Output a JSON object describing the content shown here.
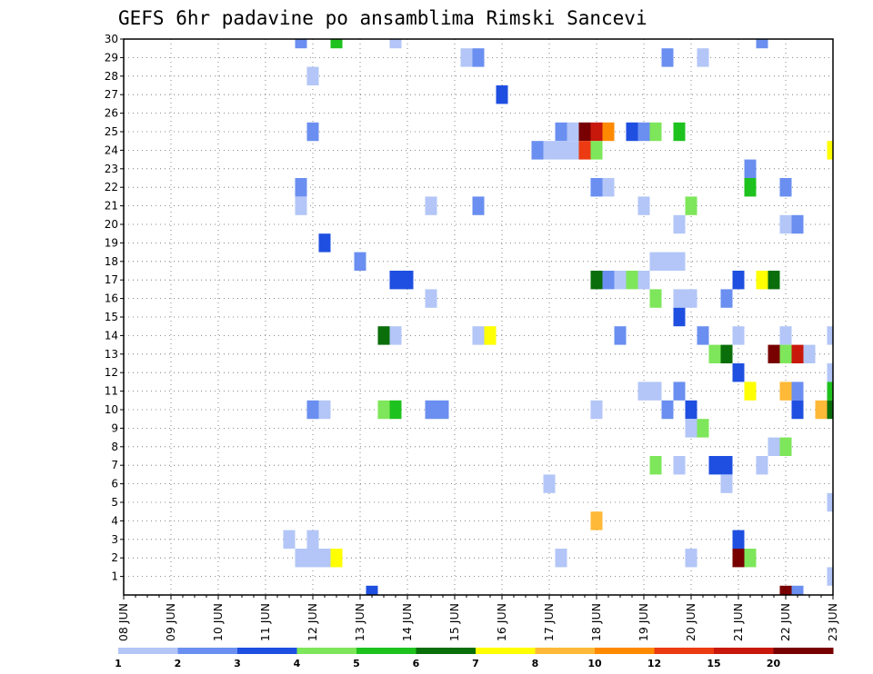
{
  "chart_data": {
    "type": "heatmap",
    "title": "GEFS 6hr padavine po ansamblima Rimski Sancevi",
    "xlabel": "",
    "ylabel": "",
    "x_tick_labels": [
      "08 JUN",
      "09 JUN",
      "10 JUN",
      "11 JUN",
      "12 JUN",
      "13 JUN",
      "14 JUN",
      "15 JUN",
      "16 JUN",
      "17 JUN",
      "18 JUN",
      "19 JUN",
      "20 JUN",
      "21 JUN",
      "22 JUN",
      "23 JUN"
    ],
    "y_tick_labels": [
      "1",
      "2",
      "3",
      "4",
      "5",
      "6",
      "7",
      "8",
      "9",
      "10",
      "11",
      "12",
      "13",
      "14",
      "15",
      "16",
      "17",
      "18",
      "19",
      "20",
      "21",
      "22",
      "23",
      "24",
      "25",
      "26",
      "27",
      "28",
      "29",
      "30"
    ],
    "x_range_days": [
      0,
      15
    ],
    "y_range": [
      0,
      30
    ],
    "time_step_hours": 6,
    "grid": "dotted",
    "legend_position": "bottom",
    "legend_levels": [
      "1",
      "2",
      "3",
      "4",
      "5",
      "6",
      "7",
      "8",
      "10",
      "12",
      "15",
      "20"
    ],
    "color_bins": [
      {
        "min": 1,
        "max": 2,
        "color": "#b3c6f7"
      },
      {
        "min": 2,
        "max": 3,
        "color": "#6a8ff0"
      },
      {
        "min": 3,
        "max": 4,
        "color": "#1e4fe0"
      },
      {
        "min": 4,
        "max": 5,
        "color": "#7ee65a"
      },
      {
        "min": 5,
        "max": 6,
        "color": "#1ec21e"
      },
      {
        "min": 6,
        "max": 7,
        "color": "#0a6e0a"
      },
      {
        "min": 7,
        "max": 8,
        "color": "#ffff00"
      },
      {
        "min": 8,
        "max": 10,
        "color": "#ffb938"
      },
      {
        "min": 10,
        "max": 12,
        "color": "#ff8a00"
      },
      {
        "min": 12,
        "max": 15,
        "color": "#ec3a12"
      },
      {
        "min": 15,
        "max": 20,
        "color": "#c8180c"
      },
      {
        "min": 20,
        "max": 30,
        "color": "#780000"
      }
    ],
    "cells": [
      {
        "day": 3.75,
        "member": 30,
        "bin": 1
      },
      {
        "day": 4.5,
        "member": 30,
        "bin": 4
      },
      {
        "day": 5.75,
        "member": 30,
        "bin": 0
      },
      {
        "day": 13.5,
        "member": 30,
        "bin": 1
      },
      {
        "day": 7.25,
        "member": 29,
        "bin": 0
      },
      {
        "day": 7.5,
        "member": 29,
        "bin": 1
      },
      {
        "day": 11.5,
        "member": 29,
        "bin": 1
      },
      {
        "day": 12.25,
        "member": 29,
        "bin": 0
      },
      {
        "day": 4,
        "member": 28,
        "bin": 0
      },
      {
        "day": 8,
        "member": 27,
        "bin": 2
      },
      {
        "day": 4,
        "member": 25,
        "bin": 1
      },
      {
        "day": 9.25,
        "member": 25,
        "bin": 1
      },
      {
        "day": 9.5,
        "member": 25,
        "bin": 0
      },
      {
        "day": 9.75,
        "member": 25,
        "bin": 11
      },
      {
        "day": 10,
        "member": 25,
        "bin": 10
      },
      {
        "day": 10.25,
        "member": 25,
        "bin": 8
      },
      {
        "day": 10.75,
        "member": 25,
        "bin": 2
      },
      {
        "day": 11,
        "member": 25,
        "bin": 1
      },
      {
        "day": 11.25,
        "member": 25,
        "bin": 3
      },
      {
        "day": 11.75,
        "member": 25,
        "bin": 4
      },
      {
        "day": 8.75,
        "member": 24,
        "bin": 1
      },
      {
        "day": 9,
        "member": 24,
        "bin": 0
      },
      {
        "day": 9.25,
        "member": 24,
        "bin": 0
      },
      {
        "day": 9.5,
        "member": 24,
        "bin": 0
      },
      {
        "day": 9.75,
        "member": 24,
        "bin": 9
      },
      {
        "day": 10,
        "member": 24,
        "bin": 3
      },
      {
        "day": 15,
        "member": 24,
        "bin": 6
      },
      {
        "day": 13.25,
        "member": 23,
        "bin": 1
      },
      {
        "day": 3.75,
        "member": 22,
        "bin": 1
      },
      {
        "day": 10,
        "member": 22,
        "bin": 1
      },
      {
        "day": 10.25,
        "member": 22,
        "bin": 0
      },
      {
        "day": 13.25,
        "member": 22,
        "bin": 4
      },
      {
        "day": 14,
        "member": 22,
        "bin": 1
      },
      {
        "day": 3.75,
        "member": 21,
        "bin": 0
      },
      {
        "day": 6.5,
        "member": 21,
        "bin": 0
      },
      {
        "day": 7.5,
        "member": 21,
        "bin": 1
      },
      {
        "day": 11,
        "member": 21,
        "bin": 0
      },
      {
        "day": 12,
        "member": 21,
        "bin": 3
      },
      {
        "day": 11.75,
        "member": 20,
        "bin": 0
      },
      {
        "day": 14,
        "member": 20,
        "bin": 0
      },
      {
        "day": 14.25,
        "member": 20,
        "bin": 1
      },
      {
        "day": 4.25,
        "member": 19,
        "bin": 2
      },
      {
        "day": 5,
        "member": 18,
        "bin": 1
      },
      {
        "day": 11.25,
        "member": 18,
        "bin": 0
      },
      {
        "day": 11.5,
        "member": 18,
        "bin": 0
      },
      {
        "day": 11.75,
        "member": 18,
        "bin": 0
      },
      {
        "day": 5.75,
        "member": 17,
        "bin": 2
      },
      {
        "day": 6,
        "member": 17,
        "bin": 2
      },
      {
        "day": 10,
        "member": 17,
        "bin": 5
      },
      {
        "day": 10.25,
        "member": 17,
        "bin": 1
      },
      {
        "day": 10.5,
        "member": 17,
        "bin": 0
      },
      {
        "day": 10.75,
        "member": 17,
        "bin": 3
      },
      {
        "day": 11,
        "member": 17,
        "bin": 0
      },
      {
        "day": 13,
        "member": 17,
        "bin": 2
      },
      {
        "day": 13.5,
        "member": 17,
        "bin": 6
      },
      {
        "day": 13.75,
        "member": 17,
        "bin": 5
      },
      {
        "day": 6.5,
        "member": 16,
        "bin": 0
      },
      {
        "day": 11.25,
        "member": 16,
        "bin": 3
      },
      {
        "day": 11.75,
        "member": 16,
        "bin": 0
      },
      {
        "day": 12,
        "member": 16,
        "bin": 0
      },
      {
        "day": 12.75,
        "member": 16,
        "bin": 1
      },
      {
        "day": 11.75,
        "member": 15,
        "bin": 2
      },
      {
        "day": 5.5,
        "member": 14,
        "bin": 5
      },
      {
        "day": 5.75,
        "member": 14,
        "bin": 0
      },
      {
        "day": 7.5,
        "member": 14,
        "bin": 0
      },
      {
        "day": 7.75,
        "member": 14,
        "bin": 6
      },
      {
        "day": 10.5,
        "member": 14,
        "bin": 1
      },
      {
        "day": 12.25,
        "member": 14,
        "bin": 1
      },
      {
        "day": 13,
        "member": 14,
        "bin": 0
      },
      {
        "day": 14,
        "member": 14,
        "bin": 0
      },
      {
        "day": 15,
        "member": 14,
        "bin": 0
      },
      {
        "day": 12.5,
        "member": 13,
        "bin": 3
      },
      {
        "day": 12.75,
        "member": 13,
        "bin": 5
      },
      {
        "day": 13.75,
        "member": 13,
        "bin": 11
      },
      {
        "day": 14,
        "member": 13,
        "bin": 3
      },
      {
        "day": 14.25,
        "member": 13,
        "bin": 10
      },
      {
        "day": 14.5,
        "member": 13,
        "bin": 0
      },
      {
        "day": 13,
        "member": 12,
        "bin": 2
      },
      {
        "day": 15,
        "member": 12,
        "bin": 0
      },
      {
        "day": 11,
        "member": 11,
        "bin": 0
      },
      {
        "day": 11.25,
        "member": 11,
        "bin": 0
      },
      {
        "day": 11.75,
        "member": 11,
        "bin": 1
      },
      {
        "day": 13.25,
        "member": 11,
        "bin": 6
      },
      {
        "day": 14,
        "member": 11,
        "bin": 7
      },
      {
        "day": 14.25,
        "member": 11,
        "bin": 1
      },
      {
        "day": 15,
        "member": 11,
        "bin": 4
      },
      {
        "day": 4,
        "member": 10,
        "bin": 1
      },
      {
        "day": 4.25,
        "member": 10,
        "bin": 0
      },
      {
        "day": 5.5,
        "member": 10,
        "bin": 3
      },
      {
        "day": 5.75,
        "member": 10,
        "bin": 4
      },
      {
        "day": 6.5,
        "member": 10,
        "bin": 1
      },
      {
        "day": 6.75,
        "member": 10,
        "bin": 1
      },
      {
        "day": 10,
        "member": 10,
        "bin": 0
      },
      {
        "day": 11.5,
        "member": 10,
        "bin": 1
      },
      {
        "day": 12,
        "member": 10,
        "bin": 2
      },
      {
        "day": 14.25,
        "member": 10,
        "bin": 2
      },
      {
        "day": 14.75,
        "member": 10,
        "bin": 7
      },
      {
        "day": 15,
        "member": 10,
        "bin": 5
      },
      {
        "day": 12,
        "member": 9,
        "bin": 0
      },
      {
        "day": 12.25,
        "member": 9,
        "bin": 3
      },
      {
        "day": 13.75,
        "member": 8,
        "bin": 0
      },
      {
        "day": 14,
        "member": 8,
        "bin": 3
      },
      {
        "day": 11.25,
        "member": 7,
        "bin": 3
      },
      {
        "day": 11.75,
        "member": 7,
        "bin": 0
      },
      {
        "day": 12.5,
        "member": 7,
        "bin": 2
      },
      {
        "day": 12.75,
        "member": 7,
        "bin": 2
      },
      {
        "day": 13.5,
        "member": 7,
        "bin": 0
      },
      {
        "day": 9,
        "member": 6,
        "bin": 0
      },
      {
        "day": 12.75,
        "member": 6,
        "bin": 0
      },
      {
        "day": 15,
        "member": 5,
        "bin": 0
      },
      {
        "day": 10,
        "member": 4,
        "bin": 7
      },
      {
        "day": 3.5,
        "member": 3,
        "bin": 0
      },
      {
        "day": 4,
        "member": 3,
        "bin": 0
      },
      {
        "day": 13,
        "member": 3,
        "bin": 2
      },
      {
        "day": 3.75,
        "member": 2,
        "bin": 0
      },
      {
        "day": 4,
        "member": 2,
        "bin": 0
      },
      {
        "day": 4.25,
        "member": 2,
        "bin": 0
      },
      {
        "day": 4.5,
        "member": 2,
        "bin": 6
      },
      {
        "day": 9.25,
        "member": 2,
        "bin": 0
      },
      {
        "day": 12,
        "member": 2,
        "bin": 0
      },
      {
        "day": 13,
        "member": 2,
        "bin": 11
      },
      {
        "day": 13.25,
        "member": 2,
        "bin": 3
      },
      {
        "day": 15,
        "member": 1,
        "bin": 0
      },
      {
        "day": 5.25,
        "member": 0,
        "bin": 2
      },
      {
        "day": 14,
        "member": 0,
        "bin": 11
      },
      {
        "day": 14.25,
        "member": 0,
        "bin": 1
      }
    ]
  }
}
